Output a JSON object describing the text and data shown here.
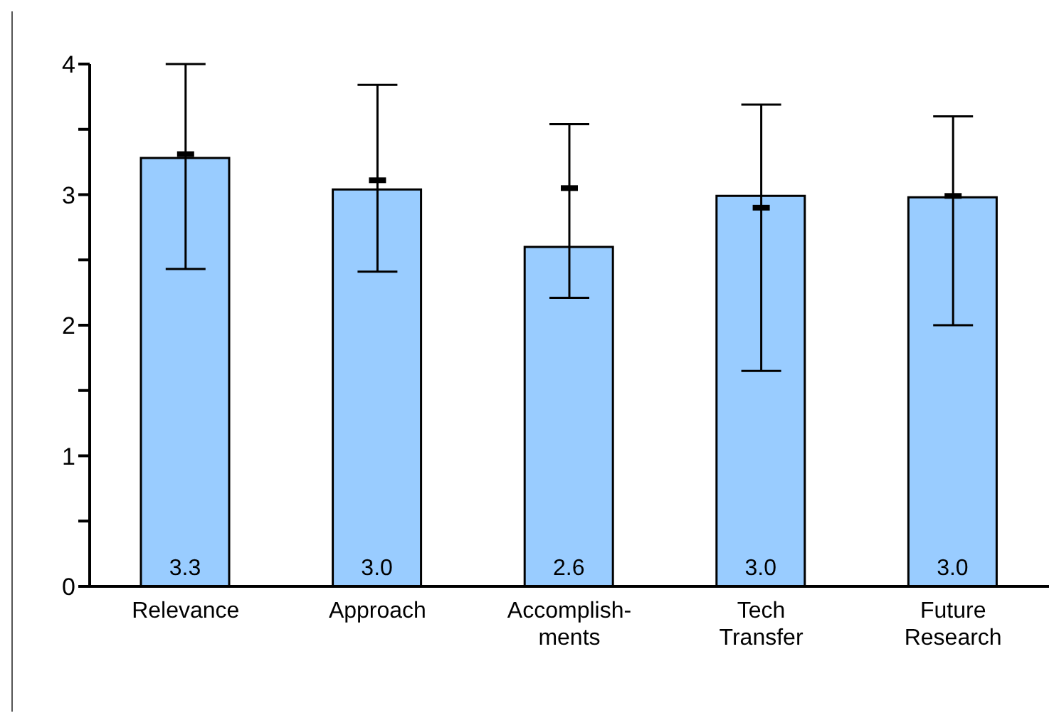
{
  "chart_data": {
    "type": "bar",
    "categories": [
      "Relevance",
      "Approach",
      "Accomplish-\nments",
      "Tech\nTransfer",
      "Future\nResearch"
    ],
    "series": [
      {
        "color": "#99ccff",
        "values": [
          3.28,
          3.04,
          2.6,
          2.99,
          2.98
        ],
        "value_labels": [
          "3.3",
          "3.0",
          "2.6",
          "3.0",
          "3.0"
        ]
      },
      {
        "type": "scatter",
        "color": "#000000",
        "values": [
          3.31,
          3.11,
          3.05,
          2.9,
          2.99
        ],
        "errors": [
          [
            2.43,
            4.0
          ],
          [
            2.41,
            3.84
          ],
          [
            2.21,
            3.54
          ],
          [
            1.65,
            3.69
          ],
          [
            2.0,
            3.6
          ]
        ]
      }
    ],
    "ylim": [
      0,
      4
    ],
    "yticks": [
      0,
      {
        "value": 0.5,
        "label": null
      },
      1,
      {
        "value": 1.5,
        "label": null
      },
      2,
      {
        "value": 2.5,
        "label": null
      },
      3,
      {
        "value": 3.5,
        "label": null
      },
      4
    ],
    "grid": false,
    "legend": false
  }
}
